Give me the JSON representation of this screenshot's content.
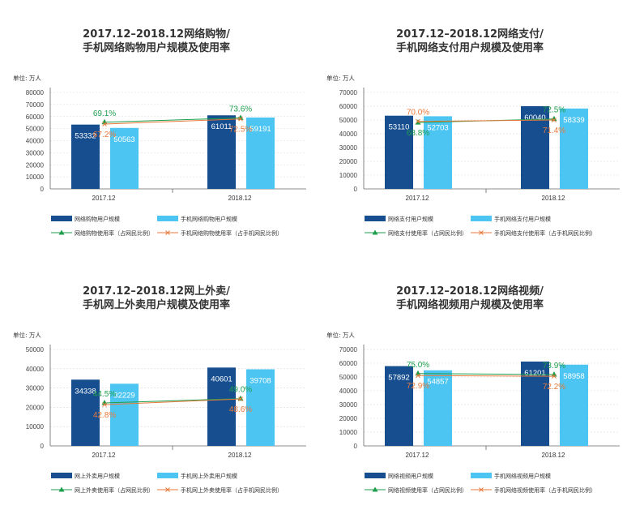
{
  "colors": {
    "dark_bar": "#174e8f",
    "light_bar": "#4dc5f2",
    "green_line": "#1e9e4d",
    "orange_line": "#e8793a",
    "axis": "#666666",
    "grid": "#d8d8d8",
    "title": "#333333"
  },
  "chart_data": [
    {
      "type": "bar",
      "title_line1": "2017.12–2018.12网络购物/",
      "title_line2": "手机网络购物用户规模及使用率",
      "unit_label": "单位: 万人",
      "categories": [
        "2017.12",
        "2018.12"
      ],
      "ylim": [
        0,
        80000
      ],
      "yticks": [
        "0",
        "10000",
        "20000",
        "30000",
        "40000",
        "50000",
        "60000",
        "70000",
        "80000"
      ],
      "series": [
        {
          "name": "网络购物用户规模",
          "values": [
            53332,
            61011
          ],
          "labels": [
            "53332",
            "61011"
          ]
        },
        {
          "name": "手机网络购物用户规模",
          "values": [
            50563,
            59191
          ],
          "labels": [
            "50563",
            "59191"
          ]
        }
      ],
      "rate_series": [
        {
          "name": "网络购物使用率（占网民比例）",
          "values": [
            69.1,
            73.6
          ],
          "labels": [
            "69.1%",
            "73.6%"
          ],
          "label_pos": [
            "above",
            "above"
          ]
        },
        {
          "name": "手机网络购物使用率（占手机网民比例）",
          "values": [
            67.2,
            72.5
          ],
          "labels": [
            "67.2%",
            "72.5%"
          ],
          "label_pos": [
            "below",
            "below"
          ]
        }
      ]
    },
    {
      "type": "bar",
      "title_line1": "2017.12–2018.12网络支付/",
      "title_line2": "手机网络支付用户规模及使用率",
      "unit_label": "单位: 万人",
      "categories": [
        "2017.12",
        "2018.12"
      ],
      "ylim": [
        0,
        70000
      ],
      "yticks": [
        "0",
        "10000",
        "20000",
        "30000",
        "40000",
        "50000",
        "60000",
        "70000"
      ],
      "series": [
        {
          "name": "网络支付用户规模",
          "values": [
            53110,
            60040
          ],
          "labels": [
            "53110",
            "60040"
          ]
        },
        {
          "name": "手机网络支付用户规模",
          "values": [
            52703,
            58339
          ],
          "labels": [
            "52703",
            "58339"
          ]
        }
      ],
      "rate_series": [
        {
          "name": "网络支付使用率（占网民比例）",
          "values": [
            68.8,
            72.5
          ],
          "labels": [
            "68.8%",
            "72.5%"
          ],
          "label_pos": [
            "below",
            "above"
          ]
        },
        {
          "name": "手机网络支付使用率（占手机网民比例）",
          "values": [
            70.0,
            71.4
          ],
          "labels": [
            "70.0%",
            "71.4%"
          ],
          "label_pos": [
            "above",
            "below"
          ]
        }
      ]
    },
    {
      "type": "bar",
      "title_line1": "2017.12–2018.12网上外卖/",
      "title_line2": "手机网上外卖用户规模及使用率",
      "unit_label": "单位: 万人",
      "categories": [
        "2017.12",
        "2018.12"
      ],
      "ylim": [
        0,
        50000
      ],
      "yticks": [
        "0",
        "10000",
        "20000",
        "30000",
        "40000",
        "50000"
      ],
      "series": [
        {
          "name": "网上外卖用户规模",
          "values": [
            34338,
            40601
          ],
          "labels": [
            "34338",
            "40601"
          ]
        },
        {
          "name": "手机网上外卖用户规模",
          "values": [
            32229,
            39708
          ],
          "labels": [
            "32229",
            "39708"
          ]
        }
      ],
      "rate_series": [
        {
          "name": "网上外卖使用率（占网民比例）",
          "values": [
            44.5,
            49.0
          ],
          "labels": [
            "44.5%",
            "49.0%"
          ],
          "label_pos": [
            "above",
            "above"
          ]
        },
        {
          "name": "手机网上外卖使用率（占手机网民比例）",
          "values": [
            42.8,
            48.6
          ],
          "labels": [
            "42.8%",
            "48.6%"
          ],
          "label_pos": [
            "below",
            "below"
          ]
        }
      ]
    },
    {
      "type": "bar",
      "title_line1": "2017.12–2018.12网络视频/",
      "title_line2": "手机网络视频用户规模及使用率",
      "unit_label": "单位: 万人",
      "categories": [
        "2017.12",
        "2018.12"
      ],
      "ylim": [
        0,
        70000
      ],
      "yticks": [
        "0",
        "10000",
        "20000",
        "30000",
        "40000",
        "50000",
        "60000",
        "70000"
      ],
      "series": [
        {
          "name": "网络视频用户规模",
          "values": [
            57892,
            61201
          ],
          "labels": [
            "57892",
            "61201"
          ]
        },
        {
          "name": "手机网络视频用户规模",
          "values": [
            54857,
            58958
          ],
          "labels": [
            "54857",
            "58958"
          ]
        }
      ],
      "rate_series": [
        {
          "name": "网络视频使用率（占网民比例）",
          "values": [
            75.0,
            73.9
          ],
          "labels": [
            "75.0%",
            "73.9%"
          ],
          "label_pos": [
            "above",
            "above"
          ]
        },
        {
          "name": "手机网络视频使用率（占手机网民比例）",
          "values": [
            72.9,
            72.2
          ],
          "labels": [
            "72.9%",
            "72.2%"
          ],
          "label_pos": [
            "below",
            "below"
          ]
        }
      ]
    }
  ]
}
